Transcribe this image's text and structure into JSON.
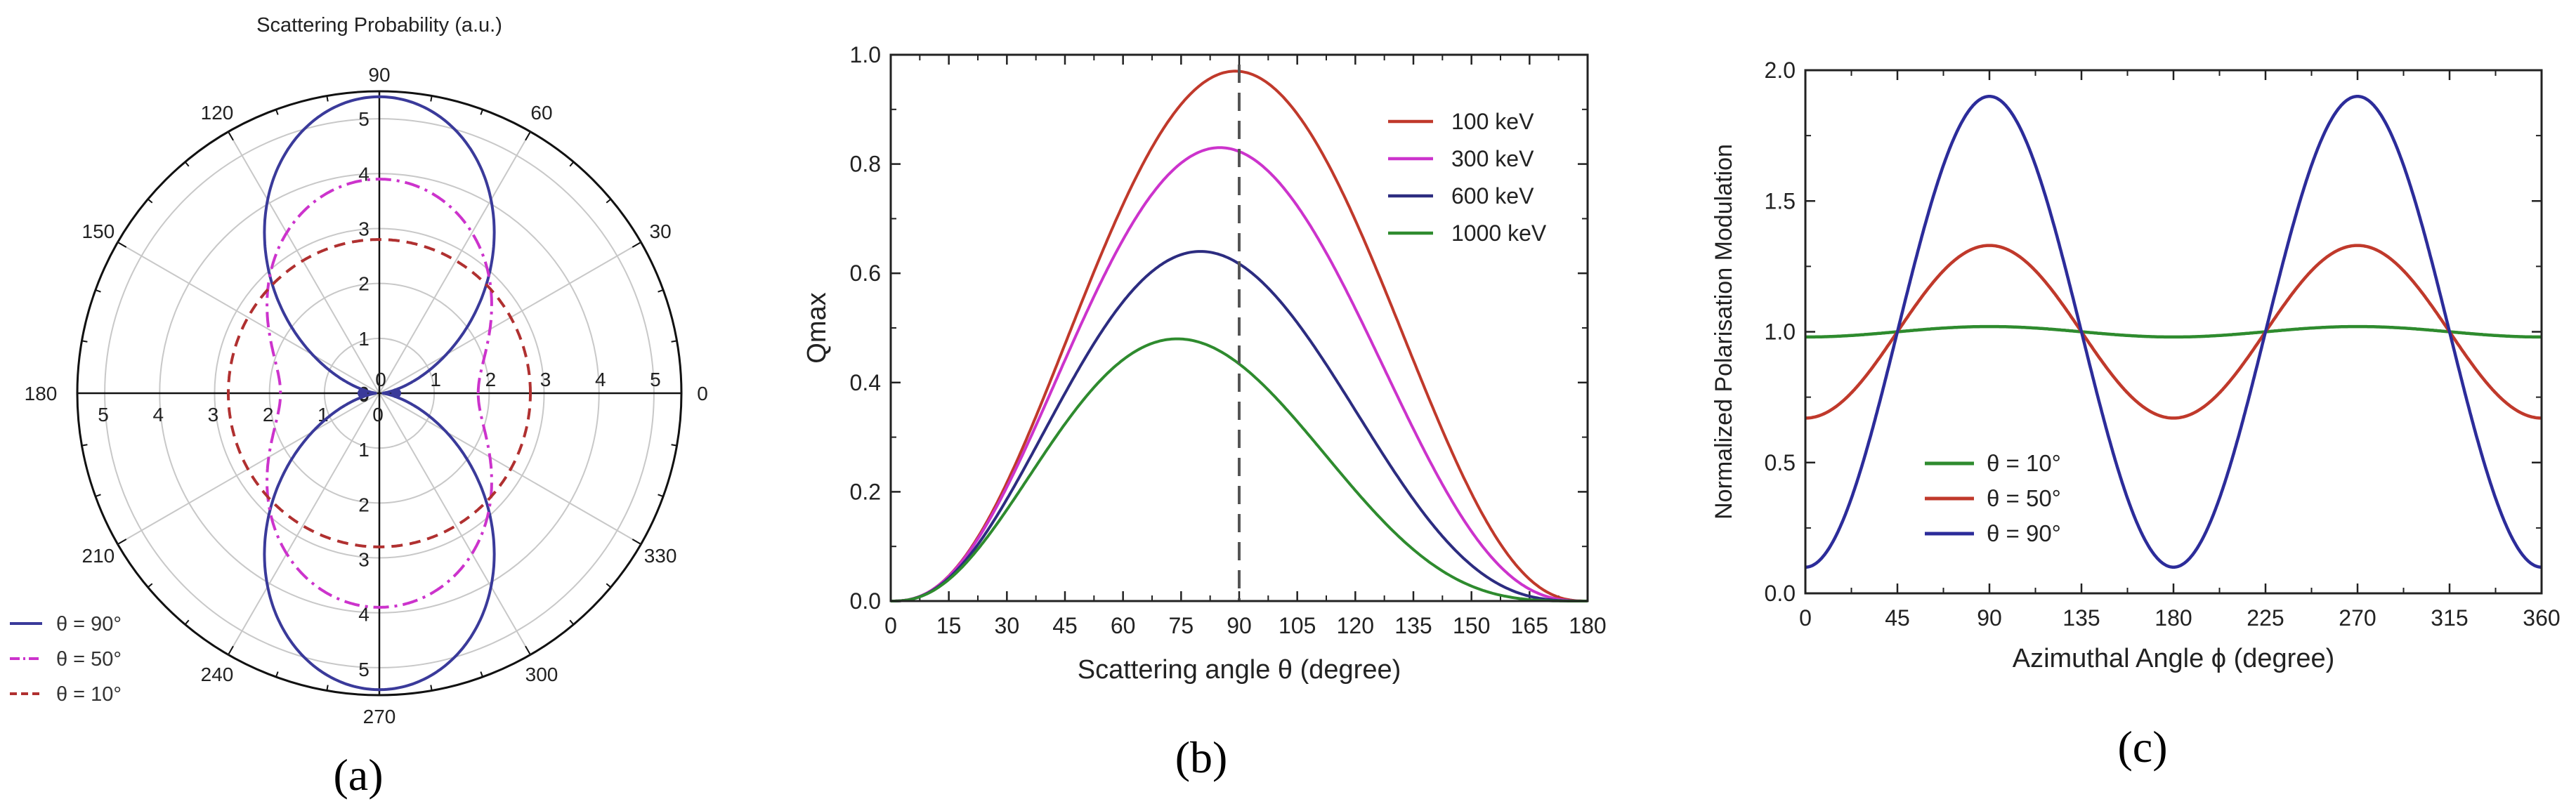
{
  "chart_data": [
    {
      "type": "polar-line",
      "panel_label": "(a)",
      "title": "Scattering Probability (a.u.)",
      "r_range": [
        0,
        5.5
      ],
      "r_ticks": [
        "0",
        "1",
        "2",
        "3",
        "4",
        "5"
      ],
      "angle_ticks": [
        "0",
        "30",
        "60",
        "90",
        "120",
        "150",
        "180",
        "210",
        "240",
        "270",
        "300",
        "330"
      ],
      "legend_position": "bottom-left",
      "series": [
        {
          "name": "θ = 90°",
          "legend_label": "θ = 90°",
          "color": "#3a3a9a",
          "style": "solid",
          "peak_r": 5.4,
          "min_r": 0.07
        },
        {
          "name": "θ = 50°",
          "legend_label": "θ = 50°",
          "color": "#cc33cc",
          "style": "dash-dot",
          "peak_r": 3.9,
          "min_r": 1.8
        },
        {
          "name": "θ = 10°",
          "legend_label": "θ = 10°",
          "color": "#b03030",
          "style": "dashed",
          "peak_r": 2.8,
          "min_r": 2.75
        }
      ]
    },
    {
      "type": "line",
      "panel_label": "(b)",
      "title": "",
      "xlabel": "Scattering angle θ (degree)",
      "ylabel": "Qmax",
      "xlim": [
        0,
        180
      ],
      "ylim": [
        0,
        1.0
      ],
      "xticks": [
        "0",
        "15",
        "30",
        "45",
        "60",
        "75",
        "90",
        "105",
        "120",
        "135",
        "150",
        "165",
        "180"
      ],
      "yticks": [
        "0.0",
        "0.2",
        "0.4",
        "0.6",
        "0.8",
        "1.0"
      ],
      "vline_x": 90,
      "legend_position": "top-right",
      "series": [
        {
          "name": "100 keV",
          "color": "#c0392b",
          "peak_x": 89,
          "peak_y": 0.97
        },
        {
          "name": "300 keV",
          "color": "#cc33cc",
          "peak_x": 85,
          "peak_y": 0.83
        },
        {
          "name": "600 keV",
          "color": "#2c2c80",
          "peak_x": 80,
          "peak_y": 0.64
        },
        {
          "name": "1000 keV",
          "color": "#2e8b2e",
          "peak_x": 74,
          "peak_y": 0.48
        }
      ]
    },
    {
      "type": "line",
      "panel_label": "(c)",
      "title": "",
      "xlabel": "Azimuthal Angle ϕ (degree)",
      "ylabel": "Normalized Polarisation Modulation",
      "xlim": [
        0,
        360
      ],
      "ylim": [
        0,
        2.0
      ],
      "xticks": [
        "0",
        "45",
        "90",
        "135",
        "180",
        "225",
        "270",
        "315",
        "360"
      ],
      "yticks": [
        "0.0",
        "0.5",
        "1.0",
        "1.5",
        "2.0"
      ],
      "legend_position": "bottom-left",
      "series": [
        {
          "name": "θ = 10°",
          "legend_label": "θ = 10°",
          "color": "#2e8b2e",
          "mean": 1.0,
          "amplitude": 0.02
        },
        {
          "name": "θ = 50°",
          "legend_label": "θ = 50°",
          "color": "#c0392b",
          "mean": 1.0,
          "amplitude": 0.33
        },
        {
          "name": "θ = 90°",
          "legend_label": "θ = 90°",
          "color": "#2c2c9a",
          "mean": 1.0,
          "amplitude": 0.9
        }
      ]
    }
  ]
}
